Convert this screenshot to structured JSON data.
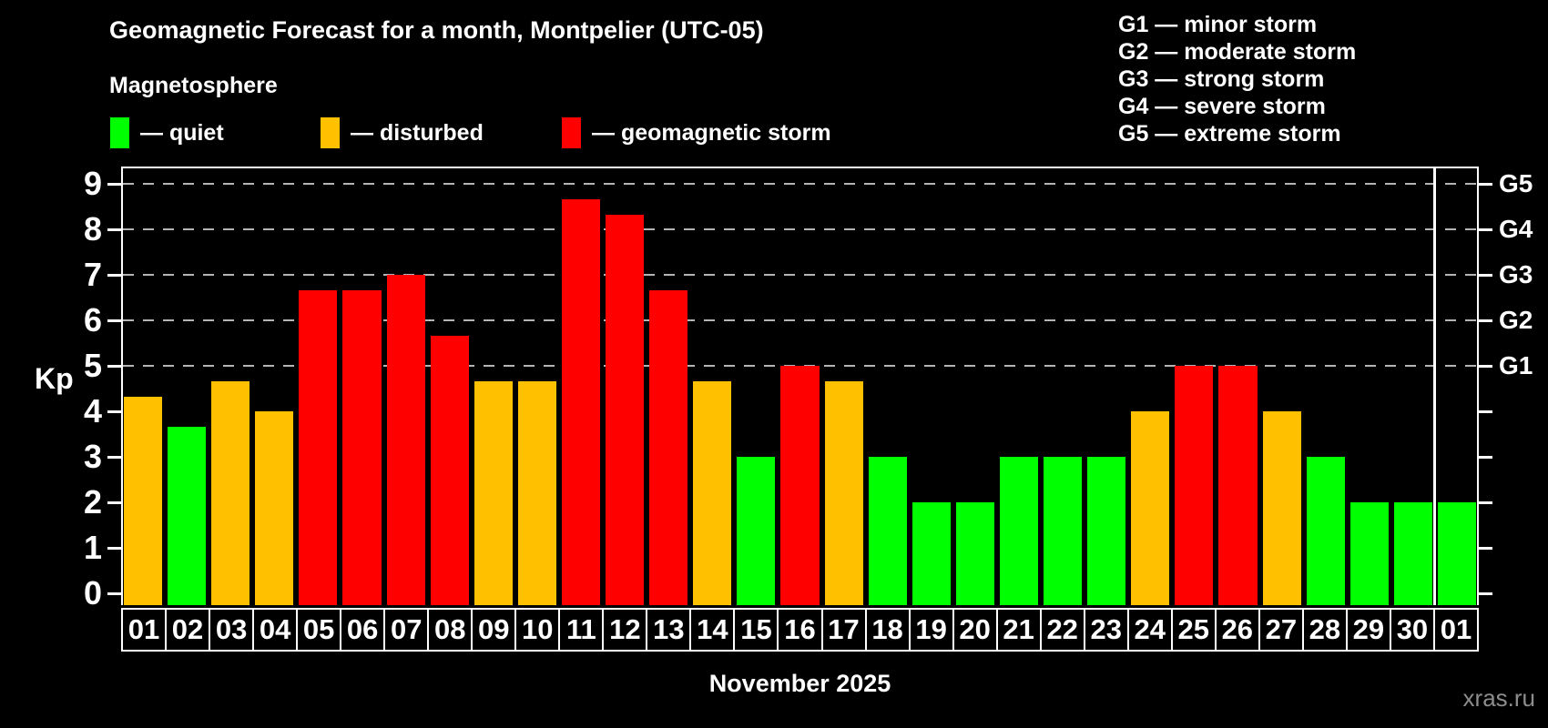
{
  "header": {
    "title": "Geomagnetic Forecast for a month, Montpelier (UTC-05)",
    "subtitle": "Magnetosphere",
    "legend": [
      {
        "label": "— quiet",
        "category": "quiet",
        "color": "#00ff00"
      },
      {
        "label": "— disturbed",
        "category": "disturbed",
        "color": "#ffc000"
      },
      {
        "label": "— geomagnetic storm",
        "category": "storm",
        "color": "#ff0000"
      }
    ],
    "g_scale_legend": [
      "G1 — minor storm",
      "G2 — moderate storm",
      "G3 — strong storm",
      "G4 — severe storm",
      "G5 — extreme storm"
    ]
  },
  "footer": {
    "month_label": "November 2025",
    "watermark": "xras.ru"
  },
  "chart_data": {
    "type": "bar",
    "title": "Geomagnetic Forecast for a month, Montpelier (UTC-05)",
    "subtitle": "Magnetosphere",
    "xlabel": "November 2025",
    "ylabel": "Kp",
    "ylim": [
      0,
      9.4
    ],
    "y_ticks": [
      0,
      1,
      2,
      3,
      4,
      5,
      6,
      7,
      8,
      9
    ],
    "gridlines_at": [
      5,
      6,
      7,
      8,
      9
    ],
    "grid": "dashed horizontal lines at storm levels G1-G5 only",
    "legend_position": "top-left",
    "right_axis_labels": [
      {
        "label": "G1",
        "kp": 5
      },
      {
        "label": "G2",
        "kp": 6
      },
      {
        "label": "G3",
        "kp": 7
      },
      {
        "label": "G4",
        "kp": 8
      },
      {
        "label": "G5",
        "kp": 9
      }
    ],
    "categories": [
      "01",
      "02",
      "03",
      "04",
      "05",
      "06",
      "07",
      "08",
      "09",
      "10",
      "11",
      "12",
      "13",
      "14",
      "15",
      "16",
      "17",
      "18",
      "19",
      "20",
      "21",
      "22",
      "23",
      "24",
      "25",
      "26",
      "27",
      "28",
      "29",
      "30",
      "01"
    ],
    "values": [
      4.33,
      3.67,
      4.67,
      4.0,
      6.67,
      6.67,
      7.0,
      5.67,
      4.67,
      4.67,
      8.67,
      8.33,
      6.67,
      4.67,
      3.0,
      5.0,
      4.67,
      3.0,
      2.0,
      2.0,
      3.0,
      3.0,
      3.0,
      4.0,
      5.0,
      5.0,
      4.0,
      3.0,
      2.0,
      2.0,
      2.0
    ],
    "status": [
      "disturbed",
      "quiet",
      "disturbed",
      "disturbed",
      "storm",
      "storm",
      "storm",
      "storm",
      "disturbed",
      "disturbed",
      "storm",
      "storm",
      "storm",
      "disturbed",
      "quiet",
      "storm",
      "disturbed",
      "quiet",
      "quiet",
      "quiet",
      "quiet",
      "quiet",
      "quiet",
      "disturbed",
      "storm",
      "storm",
      "disturbed",
      "quiet",
      "quiet",
      "quiet",
      "quiet"
    ],
    "colors": {
      "quiet": "#00ff00",
      "disturbed": "#ffc000",
      "storm": "#ff0000"
    },
    "separator_before_index": 30
  }
}
